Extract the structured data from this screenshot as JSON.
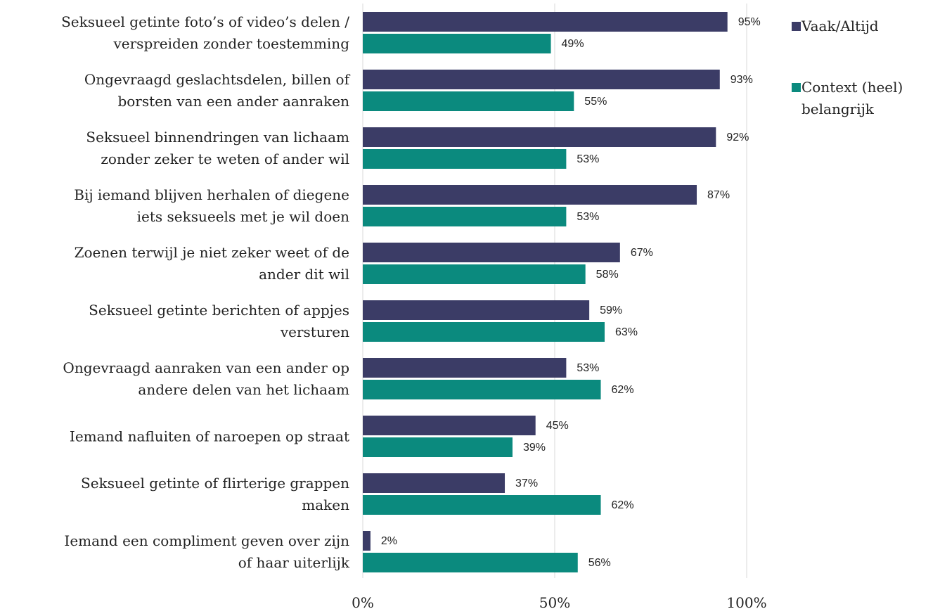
{
  "chart_data": {
    "type": "bar",
    "orientation": "horizontal",
    "categories": [
      "Seksueel getinte foto’s of video’s delen /\nverspreiden zonder toestemming",
      "Ongevraagd geslachtsdelen, billen of\nborsten van een ander aanraken",
      "Seksueel binnendringen van lichaam\nzonder zeker te weten of ander wil",
      "Bij iemand blijven herhalen of diegene\niets seksueels met je wil doen",
      "Zoenen terwijl je niet zeker weet of de\nander dit wil",
      "Seksueel getinte berichten of appjes\nversturen",
      "Ongevraagd aanraken van een ander op\nandere delen van het lichaam",
      "Iemand nafluiten of naroepen op straat",
      "Seksueel getinte of flirterige grappen\nmaken",
      "Iemand een compliment geven over zijn\nof haar uiterlijk"
    ],
    "series": [
      {
        "name": "Vaak/Altijd",
        "color": "#3b3c66",
        "values": [
          95,
          93,
          92,
          87,
          67,
          59,
          53,
          45,
          37,
          2
        ],
        "value_labels": [
          "95%",
          "93%",
          "92%",
          "87%",
          "67%",
          "59%",
          "53%",
          "45%",
          "37%",
          "2%"
        ]
      },
      {
        "name": "Context (heel)\nbelangrijk",
        "color": "#0b8a7e",
        "values": [
          49,
          55,
          53,
          53,
          58,
          63,
          62,
          39,
          62,
          56
        ],
        "value_labels": [
          "49%",
          "55%",
          "53%",
          "53%",
          "58%",
          "63%",
          "62%",
          "39%",
          "62%",
          "56%"
        ]
      }
    ],
    "xlim": [
      0,
      100
    ],
    "xticks": [
      {
        "value": 0,
        "label": "0%"
      },
      {
        "value": 50,
        "label": "50%"
      },
      {
        "value": 100,
        "label": "100%"
      }
    ],
    "grid": true,
    "legend": "right"
  }
}
